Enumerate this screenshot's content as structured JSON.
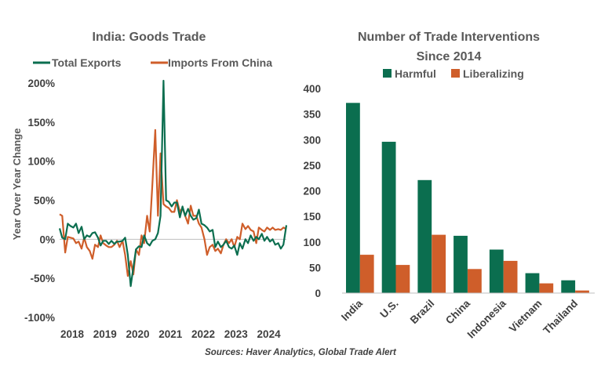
{
  "colors": {
    "green": "#0b6e4f",
    "orange": "#cf5e2a",
    "axis": "#bfbfbf",
    "text": "#595959"
  },
  "source": "Sources: Haver Analytics, Global Trade Alert",
  "chart_data": [
    {
      "type": "line",
      "title": "India: Goods Trade",
      "ylabel": "Year Over Year Change",
      "ylim": [
        -100,
        200
      ],
      "yticks": [
        -100,
        -50,
        0,
        50,
        100,
        150,
        200
      ],
      "ytick_labels": [
        "-100%",
        "-50%",
        "0%",
        "50%",
        "100%",
        "150%",
        "200%"
      ],
      "xlim": [
        2018,
        2024.92
      ],
      "xticks": [
        2018,
        2019,
        2020,
        2021,
        2022,
        2023,
        2024
      ],
      "xtick_labels": [
        "2018",
        "2019",
        "2020",
        "2021",
        "2022",
        "2023",
        "2024"
      ],
      "legend_position": "top",
      "series": [
        {
          "name": "Total Exports",
          "color": "#0b6e4f",
          "x": [
            2018.0,
            2018.08,
            2018.17,
            2018.25,
            2018.33,
            2018.42,
            2018.5,
            2018.58,
            2018.67,
            2018.75,
            2018.83,
            2018.92,
            2019.0,
            2019.08,
            2019.17,
            2019.25,
            2019.33,
            2019.42,
            2019.5,
            2019.58,
            2019.67,
            2019.75,
            2019.83,
            2019.92,
            2020.0,
            2020.08,
            2020.17,
            2020.25,
            2020.33,
            2020.42,
            2020.5,
            2020.58,
            2020.67,
            2020.75,
            2020.83,
            2020.92,
            2021.0,
            2021.08,
            2021.17,
            2021.25,
            2021.33,
            2021.42,
            2021.5,
            2021.58,
            2021.67,
            2021.75,
            2021.83,
            2021.92,
            2022.0,
            2022.08,
            2022.17,
            2022.25,
            2022.33,
            2022.42,
            2022.5,
            2022.58,
            2022.67,
            2022.75,
            2022.83,
            2022.92,
            2023.0,
            2023.08,
            2023.17,
            2023.25,
            2023.33,
            2023.42,
            2023.5,
            2023.58,
            2023.67,
            2023.75,
            2023.83,
            2023.92,
            2024.0,
            2024.08,
            2024.17,
            2024.25,
            2024.33,
            2024.42,
            2024.5,
            2024.58,
            2024.67,
            2024.75,
            2024.83,
            2024.92
          ],
          "values": [
            14,
            2,
            0,
            20,
            17,
            15,
            20,
            8,
            16,
            0,
            5,
            3,
            8,
            9,
            2,
            -8,
            -2,
            -2,
            -6,
            -2,
            -6,
            -3,
            -3,
            -2,
            2,
            -20,
            -60,
            -36,
            -13,
            -9,
            -10,
            5,
            -5,
            -8,
            -2,
            0,
            8,
            30,
            203,
            50,
            48,
            42,
            47,
            47,
            28,
            42,
            30,
            39,
            30,
            25,
            27,
            38,
            20,
            18,
            15,
            10,
            12,
            -10,
            -3,
            -10,
            -7,
            -2,
            -10,
            -12,
            -8,
            -20,
            -5,
            -12,
            0,
            -5,
            5,
            -2,
            3,
            0,
            7,
            -2,
            3,
            -3,
            0,
            -7,
            -5,
            -12,
            -7,
            18
          ]
        },
        {
          "name": "Imports From China",
          "color": "#cf5e2a",
          "x": [
            2018.0,
            2018.08,
            2018.17,
            2018.25,
            2018.33,
            2018.42,
            2018.5,
            2018.58,
            2018.67,
            2018.75,
            2018.83,
            2018.92,
            2019.0,
            2019.08,
            2019.17,
            2019.25,
            2019.33,
            2019.42,
            2019.5,
            2019.58,
            2019.67,
            2019.75,
            2019.83,
            2019.92,
            2020.0,
            2020.08,
            2020.17,
            2020.25,
            2020.33,
            2020.42,
            2020.5,
            2020.58,
            2020.67,
            2020.75,
            2020.83,
            2020.92,
            2021.0,
            2021.08,
            2021.17,
            2021.25,
            2021.33,
            2021.42,
            2021.5,
            2021.58,
            2021.67,
            2021.75,
            2021.83,
            2021.92,
            2022.0,
            2022.08,
            2022.17,
            2022.25,
            2022.33,
            2022.42,
            2022.5,
            2022.58,
            2022.67,
            2022.75,
            2022.83,
            2022.92,
            2023.0,
            2023.08,
            2023.17,
            2023.25,
            2023.33,
            2023.42,
            2023.5,
            2023.58,
            2023.67,
            2023.75,
            2023.83,
            2023.92,
            2024.0,
            2024.08,
            2024.17,
            2024.25,
            2024.33,
            2024.42,
            2024.5,
            2024.58,
            2024.67,
            2024.75,
            2024.83,
            2024.92
          ],
          "values": [
            32,
            30,
            -17,
            3,
            2,
            1,
            -5,
            -3,
            -12,
            2,
            -10,
            -15,
            -25,
            -7,
            -10,
            5,
            -5,
            -8,
            -10,
            -10,
            -7,
            -2,
            -10,
            -2,
            -20,
            -47,
            -28,
            -45,
            -13,
            -20,
            5,
            -5,
            30,
            10,
            70,
            140,
            30,
            110,
            45,
            42,
            40,
            35,
            35,
            50,
            35,
            40,
            30,
            20,
            43,
            30,
            30,
            20,
            15,
            0,
            -20,
            -10,
            -7,
            -15,
            -12,
            -18,
            -7,
            0,
            -5,
            0,
            -10,
            3,
            0,
            20,
            13,
            17,
            12,
            10,
            -5,
            15,
            12,
            10,
            15,
            12,
            15,
            12,
            13,
            12,
            15,
            13
          ]
        }
      ]
    },
    {
      "type": "bar",
      "title": "Number of Trade Interventions",
      "subtitle": "Since 2014",
      "categories": [
        "India",
        "U.S.",
        "Brazil",
        "China",
        "Indonesia",
        "Vietnam",
        "Thailand"
      ],
      "ylim": [
        0,
        400
      ],
      "yticks": [
        0,
        50,
        100,
        150,
        200,
        250,
        300,
        350,
        400
      ],
      "ytick_labels": [
        "0",
        "50",
        "100",
        "150",
        "200",
        "250",
        "300",
        "350",
        "400"
      ],
      "legend_position": "top",
      "series": [
        {
          "name": "Harmful",
          "color": "#0b6e4f",
          "values": [
            372,
            296,
            221,
            112,
            85,
            39,
            25
          ]
        },
        {
          "name": "Liberalizing",
          "color": "#cf5e2a",
          "values": [
            75,
            55,
            114,
            47,
            63,
            19,
            5
          ]
        }
      ]
    }
  ]
}
